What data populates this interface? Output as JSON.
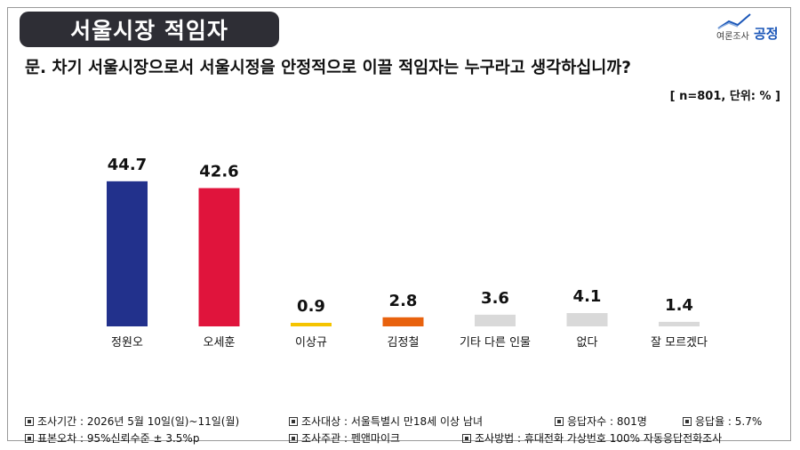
{
  "header": {
    "title": "서울시장 적임자",
    "logo_small": "여론조사",
    "logo_big": "공정",
    "logo_icon": "chart-trend-logo-icon"
  },
  "question": "문. 차기 서울시장으로서 서울시정을 안정적으로 이끌 적임자는 누구라고 생각하십니까?",
  "sample_note": "[ n=801, 단위: % ]",
  "chart_data": {
    "type": "bar",
    "categories": [
      "정원오",
      "오세훈",
      "이상규",
      "김정철",
      "기타 다른 인물",
      "없다",
      "잘 모르겠다"
    ],
    "values": [
      44.7,
      42.6,
      0.9,
      2.8,
      3.6,
      4.1,
      1.4
    ],
    "value_labels": [
      "44.7",
      "42.6",
      "0.9",
      "2.8",
      "3.6",
      "4.1",
      "1.4"
    ],
    "colors": [
      "#22318c",
      "#e0143c",
      "#f5c400",
      "#e8620e",
      "#d9d9d9",
      "#d9d9d9",
      "#d9d9d9"
    ],
    "title": "",
    "xlabel": "",
    "ylabel": "",
    "ylim": [
      0,
      50
    ],
    "grid": false,
    "legend": "none"
  },
  "footer": {
    "row1": [
      "조사기간 : 2026년 5월 10일(일)~11일(월)",
      "조사대상 : 서울특별시 만18세 이상 남녀",
      "응답자수 : 801명",
      "응답율 : 5.7%"
    ],
    "row2": [
      "표본오차 : 95%신뢰수준 ± 3.5%p",
      "조사주관 : 펜앤마이크",
      "조사방법 : 휴대전화 가상번호 100% 자동응답전화조사"
    ],
    "bullet_icon": "square-bullet-icon"
  }
}
